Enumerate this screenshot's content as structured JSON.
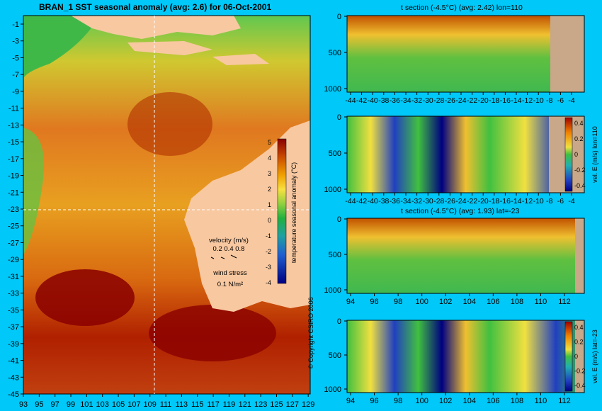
{
  "main_title": "BRAN_1 SST seasonal anomaly (avg: 2.6) for 06-Oct-2001",
  "copyright": "© Copyright CSIRO 2006",
  "colors": {
    "background": "#00c8f8",
    "land": "#f8c8a0",
    "section_land": "#c8a888"
  },
  "map": {
    "lat_ticks": [
      "-1",
      "-3",
      "-5",
      "-7",
      "-9",
      "-11",
      "-13",
      "-15",
      "-17",
      "-19",
      "-21",
      "-23",
      "-25",
      "-27",
      "-29",
      "-31",
      "-33",
      "-35",
      "-37",
      "-39",
      "-41",
      "-43",
      "-45"
    ],
    "lon_ticks": [
      "93",
      "95",
      "97",
      "99",
      "101",
      "103",
      "105",
      "107",
      "109",
      "111",
      "113",
      "115",
      "117",
      "119",
      "121",
      "123",
      "125",
      "127",
      "129"
    ],
    "colorbar": {
      "label": "temperature seasonal anomaly (°C)",
      "ticks": [
        "5",
        "4",
        "3",
        "2",
        "1",
        "0",
        "-1",
        "-2",
        "-3",
        "-4"
      ]
    },
    "velocity_legend": {
      "title": "velocity (m/s)",
      "values": "0.2 0.4 0.8"
    },
    "wind_legend": {
      "title": "wind stress",
      "value": "0.1 N/m²"
    }
  },
  "panels": [
    {
      "title": "t section (-4.5°C) (avg: 2.42) lon=110",
      "depth_ticks": [
        "0",
        "500",
        "1000"
      ],
      "x_ticks": [
        "-44",
        "-42",
        "-40",
        "-38",
        "-36",
        "-34",
        "-32",
        "-30",
        "-28",
        "-26",
        "-24",
        "-22",
        "-20",
        "-18",
        "-16",
        "-14",
        "-12",
        "-10",
        "-8",
        "-6",
        "-4"
      ]
    },
    {
      "title": "",
      "depth_ticks": [
        "0",
        "500",
        "1000"
      ],
      "x_ticks": [
        "-44",
        "-42",
        "-40",
        "-38",
        "-36",
        "-34",
        "-32",
        "-30",
        "-28",
        "-26",
        "-24",
        "-22",
        "-20",
        "-18",
        "-16",
        "-14",
        "-12",
        "-10",
        "-8",
        "-6",
        "-4"
      ],
      "colorbar": {
        "label": "vel. E (m/s) lon=110",
        "ticks": [
          "0.4",
          "0.2",
          "0",
          "-0.2",
          "-0.4"
        ]
      }
    },
    {
      "title": "t section (-4.5°C) (avg: 1.93) lat=-23",
      "depth_ticks": [
        "0",
        "500",
        "1000"
      ],
      "x_ticks": [
        "94",
        "96",
        "98",
        "100",
        "102",
        "104",
        "106",
        "108",
        "110",
        "112"
      ]
    },
    {
      "title": "",
      "depth_ticks": [
        "0",
        "500",
        "1000"
      ],
      "x_ticks": [
        "94",
        "96",
        "98",
        "100",
        "102",
        "104",
        "106",
        "108",
        "110",
        "112"
      ],
      "colorbar": {
        "label": "vel. E (m/s) lat=-23",
        "ticks": [
          "0.4",
          "0.2",
          "0",
          "-0.2",
          "-0.4"
        ]
      }
    }
  ],
  "chart_data": [
    {
      "type": "heatmap",
      "title": "BRAN_1 SST seasonal anomaly (avg: 2.6) for 06-Oct-2001",
      "xlabel": "",
      "ylabel": "",
      "xlim": [
        93,
        130
      ],
      "ylim": [
        -45,
        0
      ],
      "color_scale": "temperature seasonal anomaly (°C)",
      "clim": [
        -4,
        5
      ]
    },
    {
      "type": "heatmap",
      "title": "t section (-4.5°C) (avg: 2.42) lon=110",
      "xlim": [
        -45,
        -2
      ],
      "ylim": [
        1050,
        0
      ]
    },
    {
      "type": "heatmap",
      "title": "",
      "xlim": [
        -45,
        -2
      ],
      "ylim": [
        1050,
        0
      ],
      "color_scale": "vel. E (m/s) lon=110",
      "clim": [
        -0.4,
        0.4
      ]
    },
    {
      "type": "heatmap",
      "title": "t section (-4.5°C) (avg: 1.93) lat=-23",
      "xlim": [
        93,
        114
      ],
      "ylim": [
        1050,
        0
      ]
    },
    {
      "type": "heatmap",
      "title": "",
      "xlim": [
        93,
        114
      ],
      "ylim": [
        1050,
        0
      ],
      "color_scale": "vel. E (m/s) lat=-23",
      "clim": [
        -0.4,
        0.4
      ]
    }
  ]
}
